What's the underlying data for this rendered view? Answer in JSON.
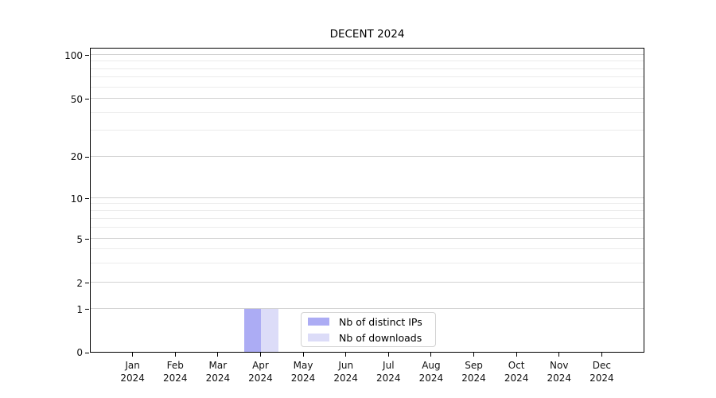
{
  "title": "DECENT 2024",
  "colors": {
    "distinct_ips_bar": "#acacf4",
    "downloads_bar": "#dcdcf8",
    "grid_major": "#d2d2d2",
    "grid_minor": "#ececec",
    "axis": "#000000",
    "legend_border": "#d2d2d2",
    "background": "#ffffff",
    "text": "#000000"
  },
  "chart_data": {
    "type": "bar",
    "title": "DECENT 2024",
    "categories": [
      "Jan 2024",
      "Feb 2024",
      "Mar 2024",
      "Apr 2024",
      "May 2024",
      "Jun 2024",
      "Jul 2024",
      "Aug 2024",
      "Sep 2024",
      "Oct 2024",
      "Nov 2024",
      "Dec 2024"
    ],
    "months": [
      "Jan",
      "Feb",
      "Mar",
      "Apr",
      "May",
      "Jun",
      "Jul",
      "Aug",
      "Sep",
      "Oct",
      "Nov",
      "Dec"
    ],
    "year_label": "2024",
    "series": [
      {
        "name": "Nb of distinct IPs",
        "color": "#acacf4",
        "values": [
          0,
          0,
          0,
          1,
          0,
          0,
          0,
          0,
          0,
          0,
          0,
          0
        ]
      },
      {
        "name": "Nb of downloads",
        "color": "#dcdcf8",
        "values": [
          0,
          0,
          0,
          1,
          0,
          0,
          0,
          0,
          0,
          0,
          0,
          0
        ]
      }
    ],
    "xlabel": "",
    "ylabel": "",
    "y_tick_labels": [
      "0",
      "1",
      "2",
      "5",
      "10",
      "20",
      "50",
      "100"
    ],
    "y_ticks": [
      0,
      1,
      2,
      5,
      10,
      20,
      50,
      100
    ],
    "y_minor_gridlines": [
      3,
      4,
      6,
      7,
      8,
      9,
      30,
      40,
      60,
      70,
      80,
      90
    ],
    "ylim": [
      0,
      110
    ],
    "scale": "log-like (linear segment below 1)",
    "grid": "horizontal",
    "legend_position": "inside bottom-center"
  }
}
